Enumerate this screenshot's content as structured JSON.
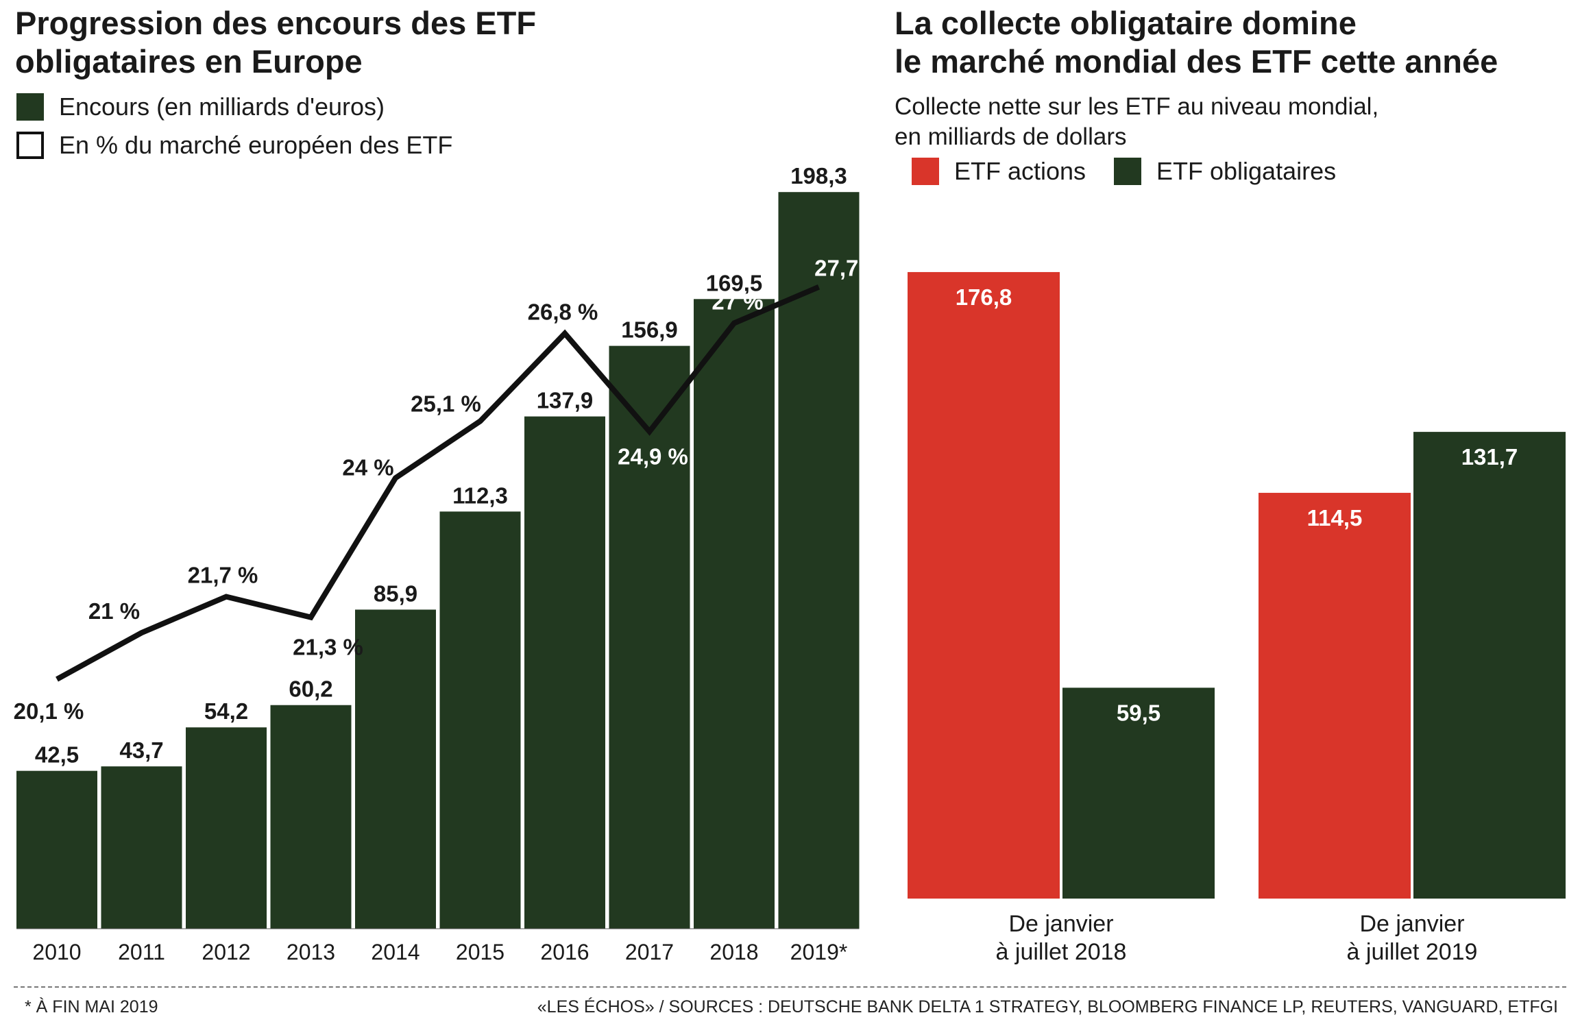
{
  "left": {
    "title_line1": "Progression des encours des ETF",
    "title_line2": "obligataires en Europe",
    "legend_bar": "Encours (en milliards d'euros)",
    "legend_line": "En % du marché européen des ETF"
  },
  "right": {
    "title_line1": "La collecte obligataire domine",
    "title_line2": "le marché mondial des ETF cette année",
    "subtitle_line1": "Collecte nette sur les ETF au niveau mondial,",
    "subtitle_line2": "en milliards de dollars",
    "legend_actions": "ETF actions",
    "legend_oblig": "ETF obligataires"
  },
  "footer": {
    "note": "* À FIN MAI 2019",
    "source": "«LES ÉCHOS» / SOURCES : DEUTSCHE BANK DELTA 1 STRATEGY, BLOOMBERG FINANCE LP, REUTERS, VANGUARD, ETFGI"
  },
  "colors": {
    "dark_green": "#223920",
    "red": "#d9352a",
    "line": "#111111"
  },
  "chart_data": [
    {
      "type": "bar",
      "title": "Progression des encours des ETF obligataires en Europe",
      "categories": [
        "2010",
        "2011",
        "2012",
        "2013",
        "2014",
        "2015",
        "2016",
        "2017",
        "2018",
        "2019*"
      ],
      "series": [
        {
          "name": "Encours (en milliards d'euros)",
          "type": "bar",
          "values": [
            42.5,
            43.7,
            54.2,
            60.2,
            85.9,
            112.3,
            137.9,
            156.9,
            169.5,
            198.3
          ],
          "labels": [
            "42,5",
            "43,7",
            "54,2",
            "60,2",
            "85,9",
            "112,3",
            "137,9",
            "156,9",
            "169,5",
            "198,3"
          ]
        },
        {
          "name": "En % du marché européen des ETF",
          "type": "line",
          "values": [
            20.1,
            21,
            21.7,
            21.3,
            24,
            25.1,
            26.8,
            24.9,
            27,
            27.7
          ],
          "labels": [
            "20,1 %",
            "21 %",
            "21,7 %",
            "21,3 %",
            "24 %",
            "25,1 %",
            "26,8 %",
            "24,9 %",
            "27 %",
            "27,7 %"
          ]
        }
      ],
      "footnote": "* À FIN MAI 2019",
      "grid": false,
      "legend": "top-left"
    },
    {
      "type": "bar",
      "title": "La collecte obligataire domine le marché mondial des ETF cette année",
      "subtitle": "Collecte nette sur les ETF au niveau mondial, en milliards de dollars",
      "categories": [
        [
          "De janvier",
          "à juillet 2018"
        ],
        [
          "De janvier",
          "à juillet 2019"
        ]
      ],
      "series": [
        {
          "name": "ETF actions",
          "values": [
            176.8,
            114.5
          ],
          "labels": [
            "176,8",
            "114,5"
          ]
        },
        {
          "name": "ETF obligataires",
          "values": [
            59.5,
            131.7
          ],
          "labels": [
            "59,5",
            "131,7"
          ]
        }
      ],
      "grid": false,
      "legend": "top-left"
    }
  ]
}
